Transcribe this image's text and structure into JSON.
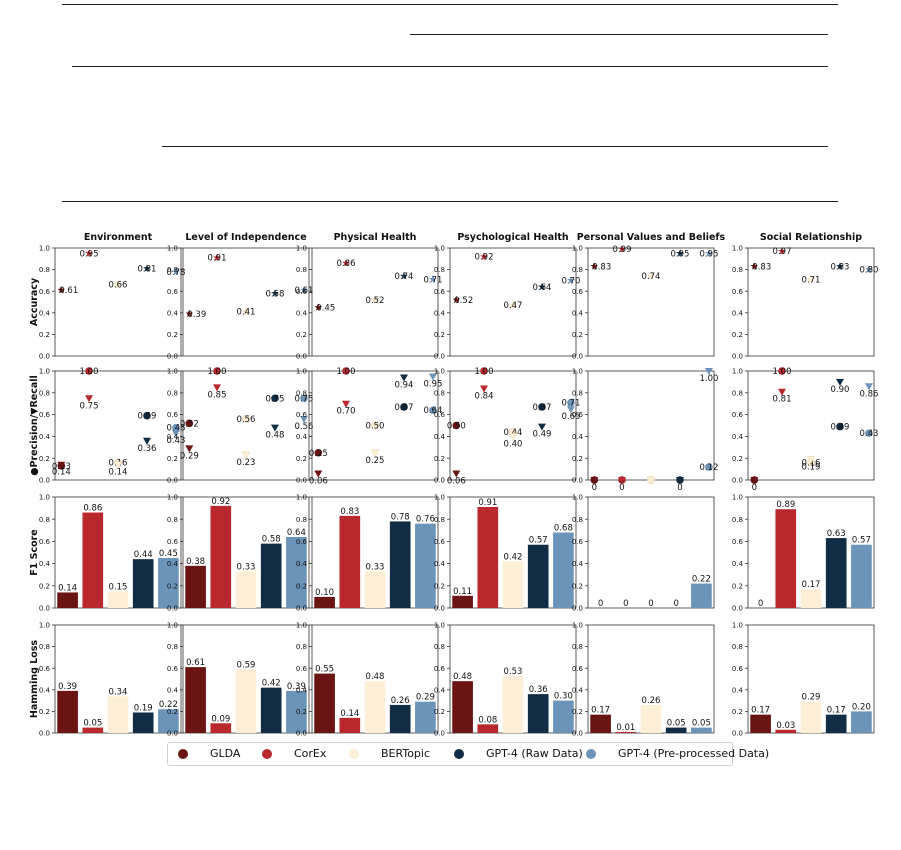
{
  "chart_data": {
    "type": "small-multiples",
    "methods": [
      {
        "name": "GLDA",
        "color": "#6b1414"
      },
      {
        "name": "CorEx",
        "color": "#b8282d"
      },
      {
        "name": "BERTopic",
        "color": "#fcefd6"
      },
      {
        "name": "GPT-4 (Raw Data)",
        "color": "#112d45"
      },
      {
        "name": "GPT-4 (Pre-processed Data)",
        "color": "#6c93b8"
      }
    ],
    "columns": [
      "Environment",
      "Level of Independence",
      "Physical Health",
      "Psychological Health",
      "Personal Values and Beliefs",
      "Social Relationship"
    ],
    "row_labels": [
      "Accuracy",
      "Precision/Recall",
      "F1 Score",
      "Hamming Loss"
    ],
    "ylim": [
      0,
      1
    ],
    "yticks": [
      "0.0",
      "0.2",
      "0.4",
      "0.6",
      "0.8",
      "1.0"
    ],
    "marker_legend": {
      "precision": "circle",
      "recall": "triangle",
      "accuracy": "star"
    },
    "accuracy": [
      {
        "values": [
          0.61,
          0.95,
          0.66,
          0.81,
          0.78
        ],
        "labels": [
          "0.61",
          "0.95",
          "0.66",
          "0.81",
          "0.78"
        ]
      },
      {
        "values": [
          0.39,
          0.91,
          0.41,
          0.58,
          0.61
        ],
        "labels": [
          "0.39",
          "0.91",
          "0.41",
          "0.58",
          "0.61"
        ]
      },
      {
        "values": [
          0.45,
          0.86,
          0.52,
          0.74,
          0.71
        ],
        "labels": [
          "0.45",
          "0.86",
          "0.52",
          "0.74",
          "0.71"
        ]
      },
      {
        "values": [
          0.52,
          0.92,
          0.47,
          0.64,
          0.7
        ],
        "labels": [
          "0.52",
          "0.92",
          "0.47",
          "0.64",
          "0.70"
        ]
      },
      {
        "values": [
          0.83,
          0.99,
          0.74,
          0.95,
          0.95
        ],
        "labels": [
          "0.83",
          "0.99",
          "0.74",
          "0.95",
          "0.95"
        ]
      },
      {
        "values": [
          0.83,
          0.97,
          0.71,
          0.83,
          0.8
        ],
        "labels": [
          "0.83",
          "0.97",
          "0.71",
          "0.83",
          "0.80"
        ]
      }
    ],
    "precision": [
      {
        "values": [
          0.13,
          1.0,
          0.16,
          0.59,
          0.48
        ],
        "labels": [
          "0.13",
          "1.00",
          "0.16",
          "0.59",
          "0.48"
        ]
      },
      {
        "values": [
          0.52,
          1.0,
          0.56,
          0.75,
          0.75
        ],
        "labels": [
          "0.52",
          "1.00",
          "0.56",
          "0.75",
          "0.75"
        ]
      },
      {
        "values": [
          0.25,
          1.0,
          0.5,
          0.67,
          0.64
        ],
        "labels": [
          "0.25",
          "1.00",
          "0.50",
          "0.67",
          "0.64"
        ]
      },
      {
        "values": [
          0.5,
          1.0,
          0.44,
          0.67,
          0.71
        ],
        "labels": [
          "0.50",
          "1.00",
          "0.44",
          "0.67",
          "0.71"
        ]
      },
      {
        "values": [
          0,
          0,
          0.0,
          0,
          0.12
        ],
        "labels": [
          "0",
          "0",
          "",
          "0",
          "0.12"
        ]
      },
      {
        "values": [
          0,
          1.0,
          0.16,
          0.49,
          0.43
        ],
        "labels": [
          "0",
          "1.00",
          "0.16",
          "0.49",
          "0.43"
        ]
      }
    ],
    "recall": [
      {
        "values": [
          0.14,
          0.75,
          0.14,
          0.36,
          0.43
        ],
        "labels": [
          "0.14",
          "0.75",
          "0.14",
          "0.36",
          "0.43"
        ]
      },
      {
        "values": [
          0.29,
          0.85,
          0.23,
          0.48,
          0.56
        ],
        "labels": [
          "0.29",
          "0.85",
          "0.23",
          "0.48",
          "0.56"
        ]
      },
      {
        "values": [
          0.06,
          0.7,
          0.25,
          0.94,
          0.95
        ],
        "labels": [
          "0.06",
          "0.70",
          "0.25",
          "0.94",
          "0.95"
        ]
      },
      {
        "values": [
          0.06,
          0.84,
          0.4,
          0.49,
          0.65
        ],
        "labels": [
          "0.06",
          "0.84",
          "0.40",
          "0.49",
          "0.65"
        ]
      },
      {
        "values": [
          0,
          0,
          0.0,
          0,
          1.0
        ],
        "labels": [
          "0",
          "0",
          "",
          "0",
          "1.00"
        ]
      },
      {
        "values": [
          0,
          0.81,
          0.19,
          0.9,
          0.86
        ],
        "labels": [
          "0",
          "0.81",
          "0.19",
          "0.90",
          "0.86"
        ]
      }
    ],
    "f1": [
      {
        "values": [
          0.14,
          0.86,
          0.15,
          0.44,
          0.45
        ],
        "labels": [
          "0.14",
          "0.86",
          "0.15",
          "0.44",
          "0.45"
        ]
      },
      {
        "values": [
          0.38,
          0.92,
          0.33,
          0.58,
          0.64
        ],
        "labels": [
          "0.38",
          "0.92",
          "0.33",
          "0.58",
          "0.64"
        ]
      },
      {
        "values": [
          0.1,
          0.83,
          0.33,
          0.78,
          0.76
        ],
        "labels": [
          "0.10",
          "0.83",
          "0.33",
          "0.78",
          "0.76"
        ]
      },
      {
        "values": [
          0.11,
          0.91,
          0.42,
          0.57,
          0.68
        ],
        "labels": [
          "0.11",
          "0.91",
          "0.42",
          "0.57",
          "0.68"
        ]
      },
      {
        "values": [
          0,
          0,
          0,
          0,
          0.22
        ],
        "labels": [
          "0",
          "0",
          "0",
          "0",
          "0.22"
        ]
      },
      {
        "values": [
          0,
          0.89,
          0.17,
          0.63,
          0.57
        ],
        "labels": [
          "0",
          "0.89",
          "0.17",
          "0.63",
          "0.57"
        ]
      }
    ],
    "hamming": [
      {
        "values": [
          0.39,
          0.05,
          0.34,
          0.19,
          0.22
        ],
        "labels": [
          "0.39",
          "0.05",
          "0.34",
          "0.19",
          "0.22"
        ]
      },
      {
        "values": [
          0.61,
          0.09,
          0.59,
          0.42,
          0.39
        ],
        "labels": [
          "0.61",
          "0.09",
          "0.59",
          "0.42",
          "0.39"
        ]
      },
      {
        "values": [
          0.55,
          0.14,
          0.48,
          0.26,
          0.29
        ],
        "labels": [
          "0.55",
          "0.14",
          "0.48",
          "0.26",
          "0.29"
        ]
      },
      {
        "values": [
          0.48,
          0.08,
          0.53,
          0.36,
          0.3
        ],
        "labels": [
          "0.48",
          "0.08",
          "0.53",
          "0.36",
          "0.30"
        ]
      },
      {
        "values": [
          0.17,
          0.01,
          0.26,
          0.05,
          0.05
        ],
        "labels": [
          "0.17",
          "0.01",
          "0.26",
          "0.05",
          "0.05"
        ]
      },
      {
        "values": [
          0.17,
          0.03,
          0.29,
          0.17,
          0.2
        ],
        "labels": [
          "0.17",
          "0.03",
          "0.29",
          "0.17",
          "0.20"
        ]
      }
    ]
  }
}
